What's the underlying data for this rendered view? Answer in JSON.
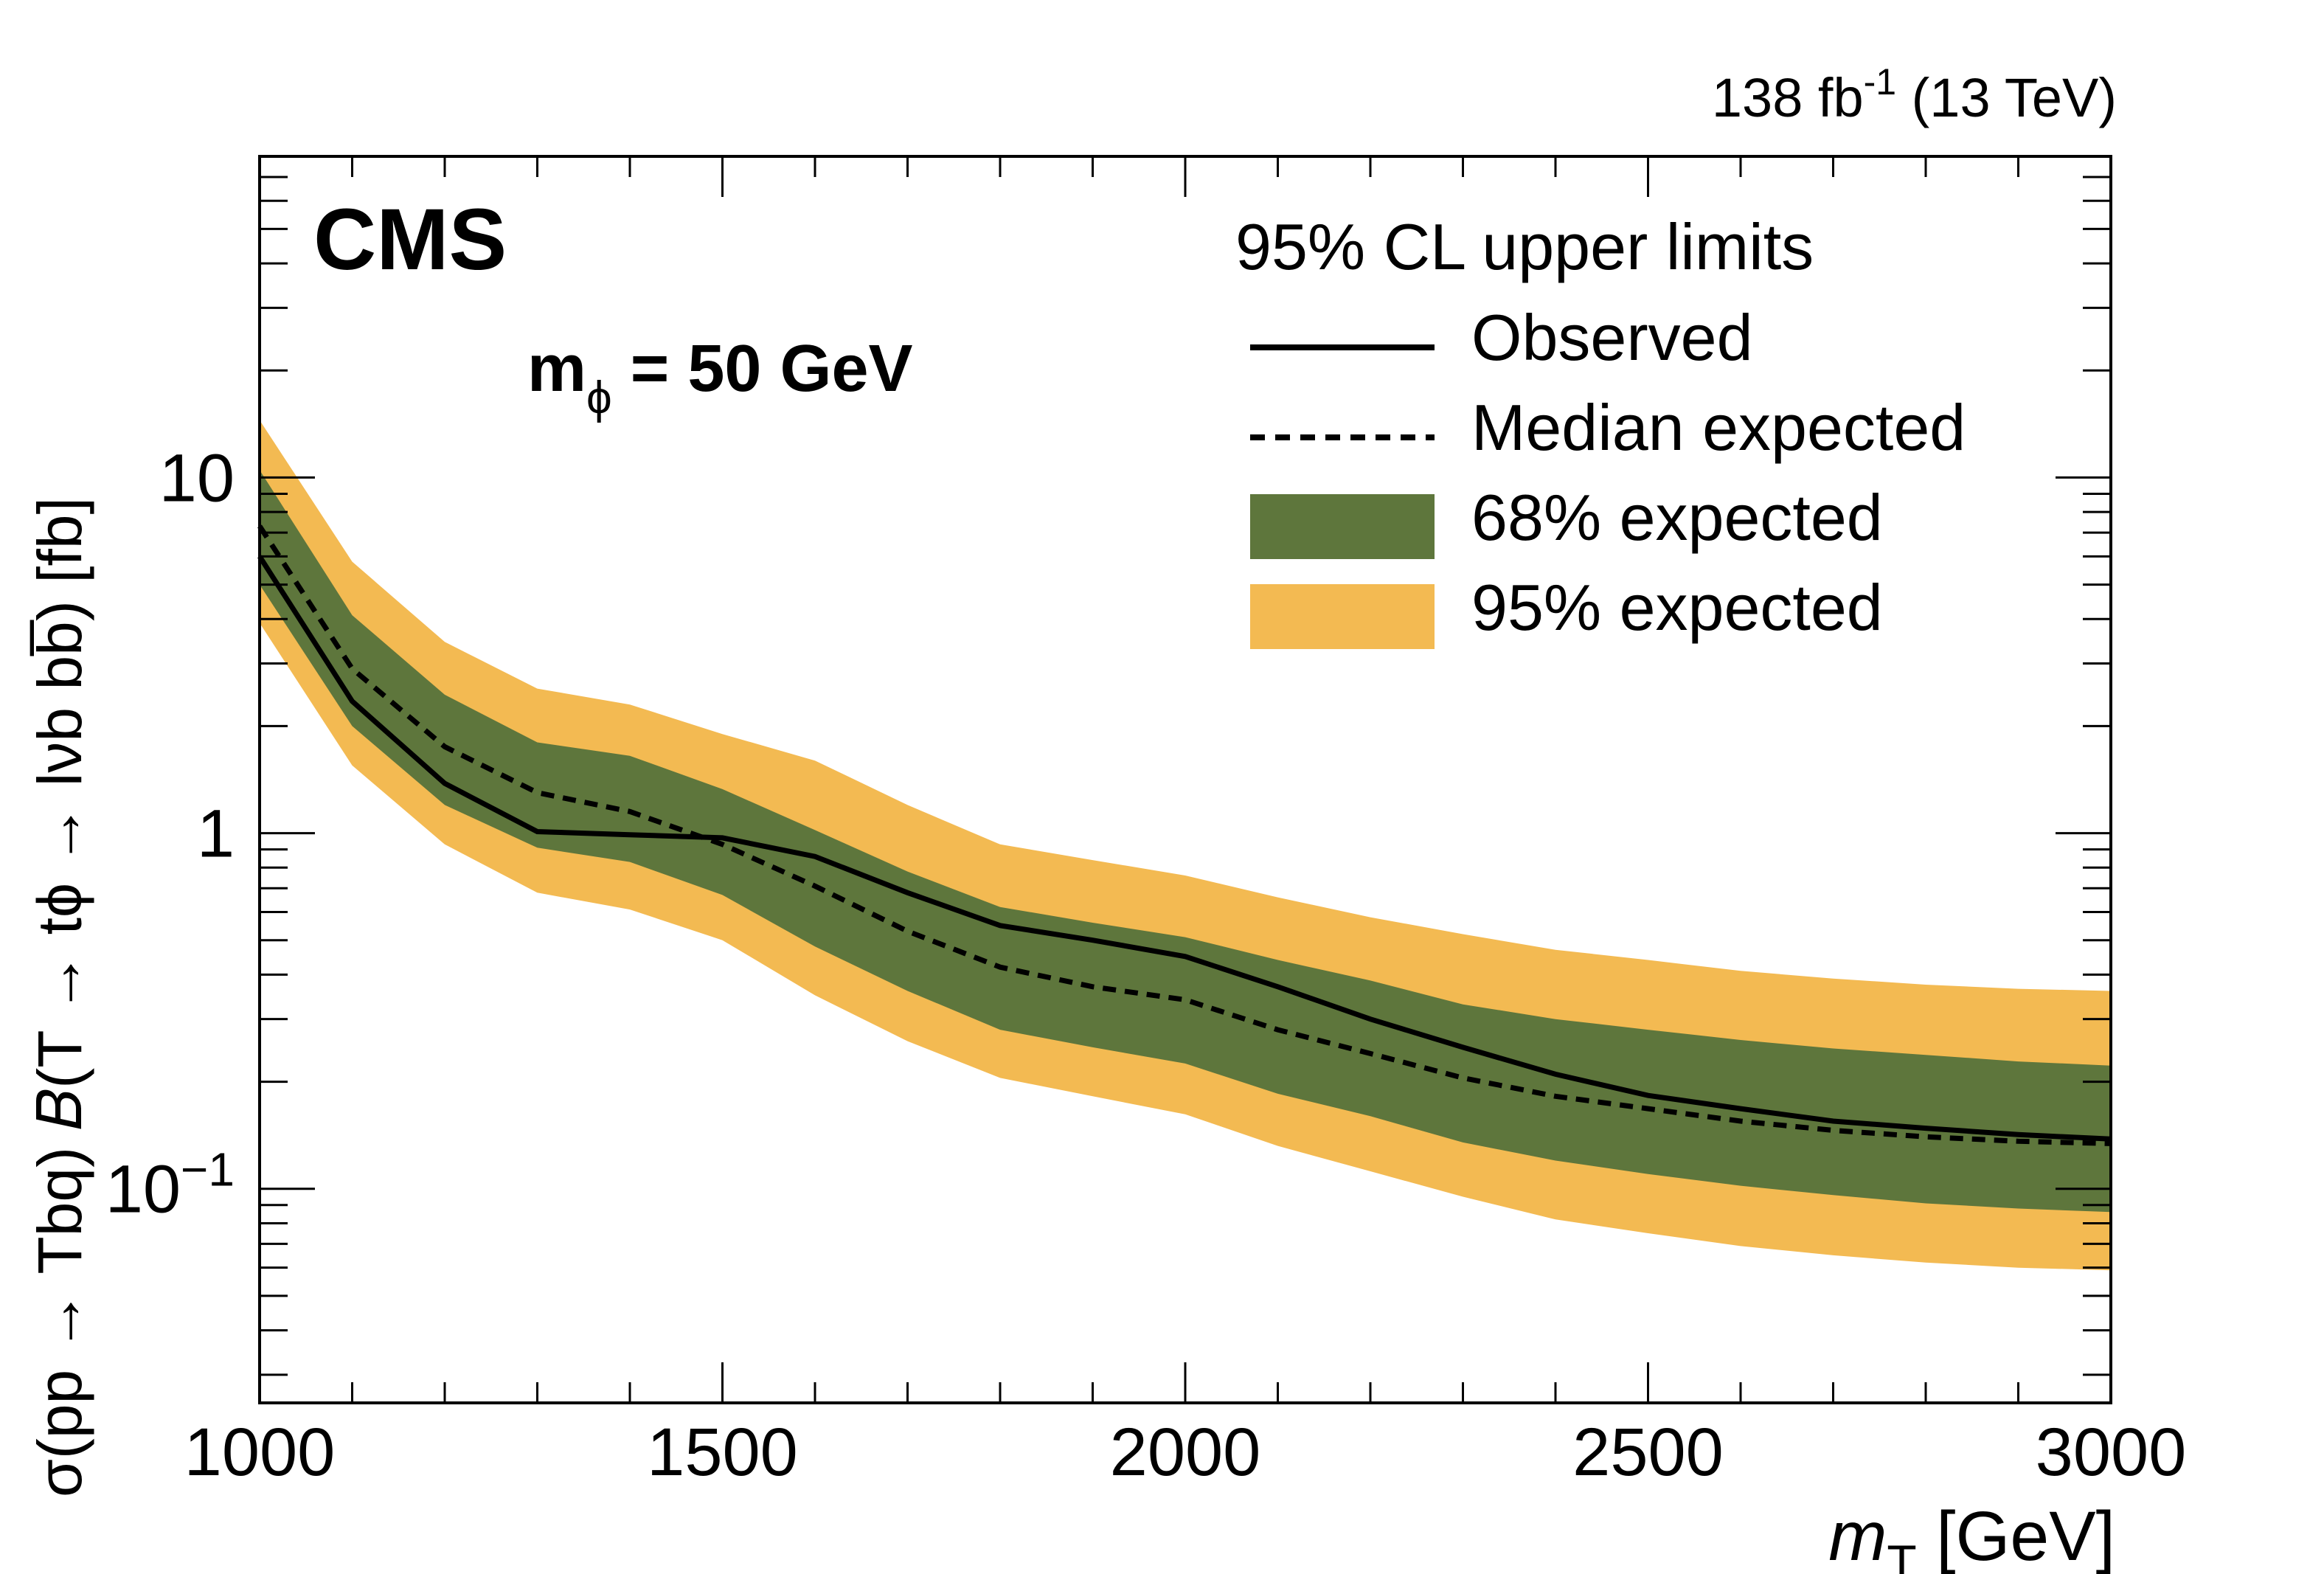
{
  "header": {
    "lumi_prefix": "138 fb",
    "lumi_exp": "-1",
    "lumi_suffix": " (13 TeV)"
  },
  "cms_label": "CMS",
  "mass_label": {
    "m": "m",
    "sub": "ϕ",
    "rest": " = 50 GeV"
  },
  "legend": {
    "title": "95% CL upper limits",
    "entries": [
      {
        "label": "Observed",
        "kind": "line-solid"
      },
      {
        "label": "Median expected",
        "kind": "line-dashed"
      },
      {
        "label": "68% expected",
        "kind": "band",
        "color": "#5e763c"
      },
      {
        "label": "95% expected",
        "kind": "band",
        "color": "#f3ba52"
      }
    ]
  },
  "xaxis": {
    "label_italic": "m",
    "label_sub": "T",
    "label_rest": " [GeV]"
  },
  "yaxis": {
    "label": "σ(pp → Tbq) 𝐵(T → tϕ → lνb  bb̅) [fb]"
  },
  "colors": {
    "band68": "#5e763c",
    "band95": "#f3ba52",
    "line": "#000000"
  },
  "chart_data": {
    "type": "line",
    "title": "",
    "xlabel": "m_T [GeV]",
    "ylabel": "σ(pp → Tbq) B(T → tϕ → lνb bb̄) [fb]",
    "yscale": "log",
    "xlim": [
      1000,
      3000
    ],
    "ylim": [
      0.025,
      80
    ],
    "xticks": [
      1000,
      1500,
      2000,
      2500,
      3000
    ],
    "yticks": [
      {
        "value": 0.1,
        "base": "10",
        "exp": "−1"
      },
      {
        "value": 1,
        "base": "1",
        "exp": ""
      },
      {
        "value": 10,
        "base": "10",
        "exp": ""
      }
    ],
    "x": [
      1000,
      1100,
      1200,
      1300,
      1400,
      1500,
      1600,
      1700,
      1800,
      1900,
      2000,
      2100,
      2200,
      2300,
      2400,
      2500,
      2600,
      2700,
      2800,
      2900,
      3000
    ],
    "series": [
      {
        "name": "Observed",
        "values": [
          6.0,
          2.35,
          1.38,
          1.01,
          0.99,
          0.97,
          0.86,
          0.68,
          0.55,
          0.5,
          0.45,
          0.37,
          0.3,
          0.25,
          0.21,
          0.183,
          0.168,
          0.155,
          0.148,
          0.142,
          0.138
        ]
      },
      {
        "name": "Median expected",
        "values": [
          7.3,
          2.9,
          1.75,
          1.3,
          1.15,
          0.93,
          0.71,
          0.53,
          0.42,
          0.37,
          0.34,
          0.28,
          0.24,
          0.205,
          0.182,
          0.168,
          0.155,
          0.146,
          0.14,
          0.136,
          0.134
        ]
      },
      {
        "name": "68% expected",
        "lower": [
          5.0,
          2.0,
          1.2,
          0.91,
          0.83,
          0.67,
          0.48,
          0.36,
          0.28,
          0.25,
          0.225,
          0.185,
          0.16,
          0.135,
          0.12,
          0.11,
          0.102,
          0.096,
          0.091,
          0.088,
          0.086
        ],
        "upper": [
          10.5,
          4.1,
          2.45,
          1.8,
          1.65,
          1.33,
          1.02,
          0.78,
          0.62,
          0.56,
          0.51,
          0.44,
          0.385,
          0.33,
          0.3,
          0.28,
          0.262,
          0.248,
          0.238,
          0.228,
          0.222
        ]
      },
      {
        "name": "95% expected",
        "lower": [
          3.9,
          1.55,
          0.93,
          0.68,
          0.61,
          0.5,
          0.35,
          0.26,
          0.205,
          0.182,
          0.162,
          0.132,
          0.112,
          0.095,
          0.082,
          0.075,
          0.069,
          0.065,
          0.062,
          0.06,
          0.059
        ],
        "upper": [
          14.5,
          5.8,
          3.45,
          2.55,
          2.3,
          1.9,
          1.6,
          1.2,
          0.93,
          0.84,
          0.76,
          0.66,
          0.58,
          0.52,
          0.47,
          0.44,
          0.41,
          0.39,
          0.375,
          0.365,
          0.36
        ]
      }
    ]
  }
}
